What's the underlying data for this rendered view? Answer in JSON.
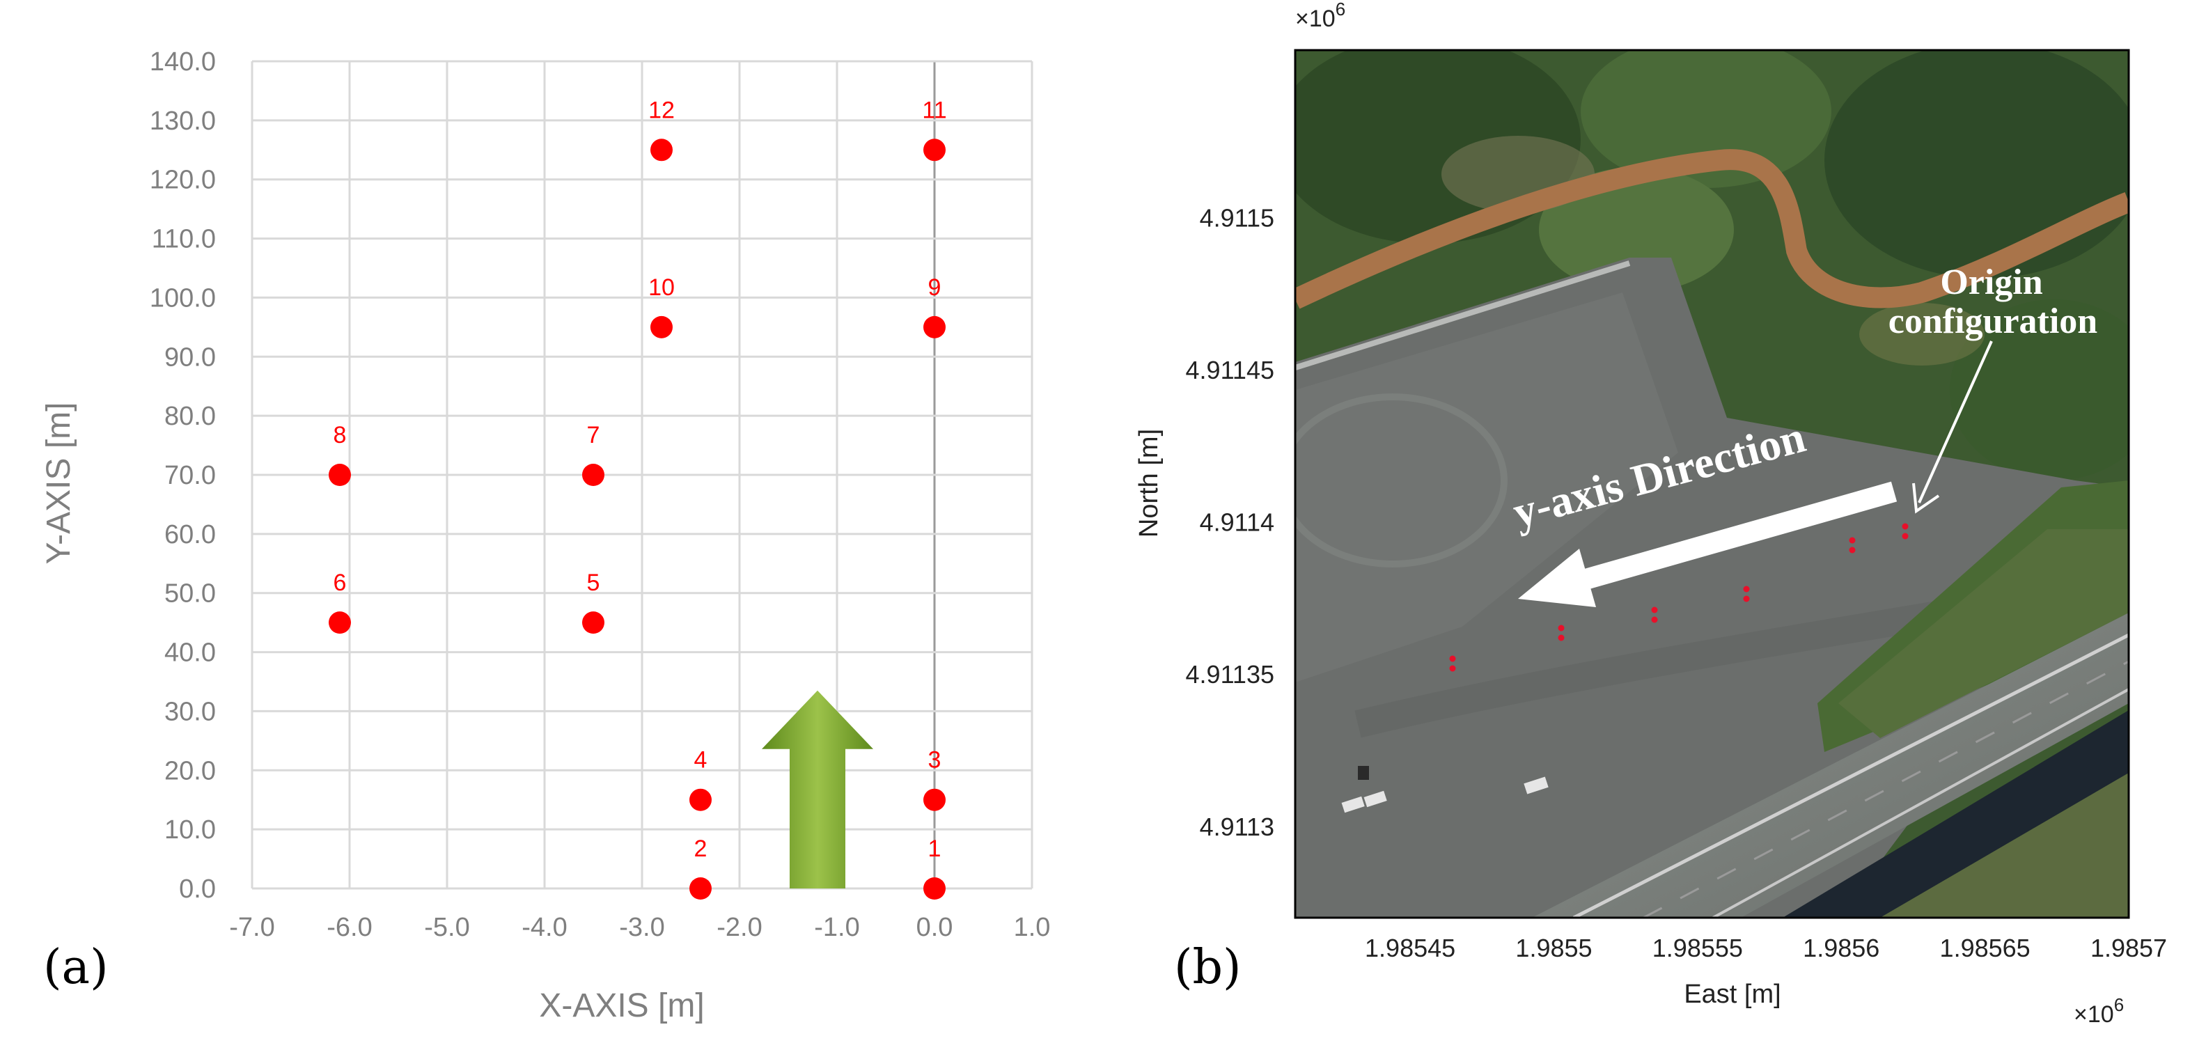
{
  "panels": {
    "a": "(a)",
    "b": "(b)"
  },
  "chart_data": [
    {
      "type": "scatter",
      "title": "",
      "xlabel": "X-AXIS [m]",
      "ylabel": "Y-AXIS [m]",
      "xlim": [
        -7.0,
        1.0
      ],
      "ylim": [
        0.0,
        140.0
      ],
      "x_ticks": [
        "-7.0",
        "-6.0",
        "-5.0",
        "-4.0",
        "-3.0",
        "-2.0",
        "-1.0",
        "0.0",
        "1.0"
      ],
      "y_ticks": [
        "0.0",
        "10.0",
        "20.0",
        "30.0",
        "40.0",
        "50.0",
        "60.0",
        "70.0",
        "80.0",
        "90.0",
        "100.0",
        "110.0",
        "120.0",
        "130.0",
        "140.0"
      ],
      "grid": true,
      "marker_color": "#ff0000",
      "arrow_color": "#7ea62e",
      "arrow": {
        "x": -1.2,
        "y_start": 0.0,
        "y_end": 33.5
      },
      "points": [
        {
          "label": "1",
          "x": 0.0,
          "y": 0.0
        },
        {
          "label": "2",
          "x": -2.4,
          "y": 0.0
        },
        {
          "label": "3",
          "x": 0.0,
          "y": 15.0
        },
        {
          "label": "4",
          "x": -2.4,
          "y": 15.0
        },
        {
          "label": "5",
          "x": -3.5,
          "y": 45.0
        },
        {
          "label": "6",
          "x": -6.1,
          "y": 45.0
        },
        {
          "label": "7",
          "x": -3.5,
          "y": 70.0
        },
        {
          "label": "8",
          "x": -6.1,
          "y": 70.0
        },
        {
          "label": "9",
          "x": 0.0,
          "y": 95.0
        },
        {
          "label": "10",
          "x": -2.8,
          "y": 95.0
        },
        {
          "label": "11",
          "x": 0.0,
          "y": 125.0
        },
        {
          "label": "12",
          "x": -2.8,
          "y": 125.0
        }
      ]
    },
    {
      "type": "scatter",
      "title": "",
      "xlabel": "East [m]",
      "ylabel": "North [m]",
      "x_multiplier": "×10",
      "y_multiplier": "×10",
      "multiplier_exponent": "6",
      "xlim": [
        1.98541,
        1.9857
      ],
      "ylim": [
        4.91127,
        4.911555
      ],
      "x_ticks": [
        "1.98545",
        "1.9855",
        "1.98555",
        "1.9856",
        "1.98565",
        "1.9857"
      ],
      "y_ticks": [
        "4.9113",
        "4.91135",
        "4.9114",
        "4.91145",
        "4.9115"
      ],
      "background": "satellite image",
      "annotations": {
        "direction": "y-axis Direction",
        "origin_line1": "Origin",
        "origin_line2": "configuration"
      },
      "marker_color": "#e8102a"
    }
  ]
}
